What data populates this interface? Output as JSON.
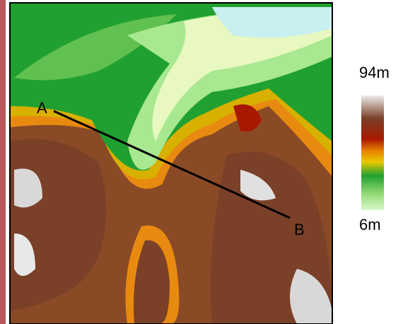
{
  "map": {
    "points": [
      {
        "label": "A"
      },
      {
        "label": "B"
      }
    ],
    "legend": {
      "max": "94m",
      "min": "6m"
    }
  }
}
